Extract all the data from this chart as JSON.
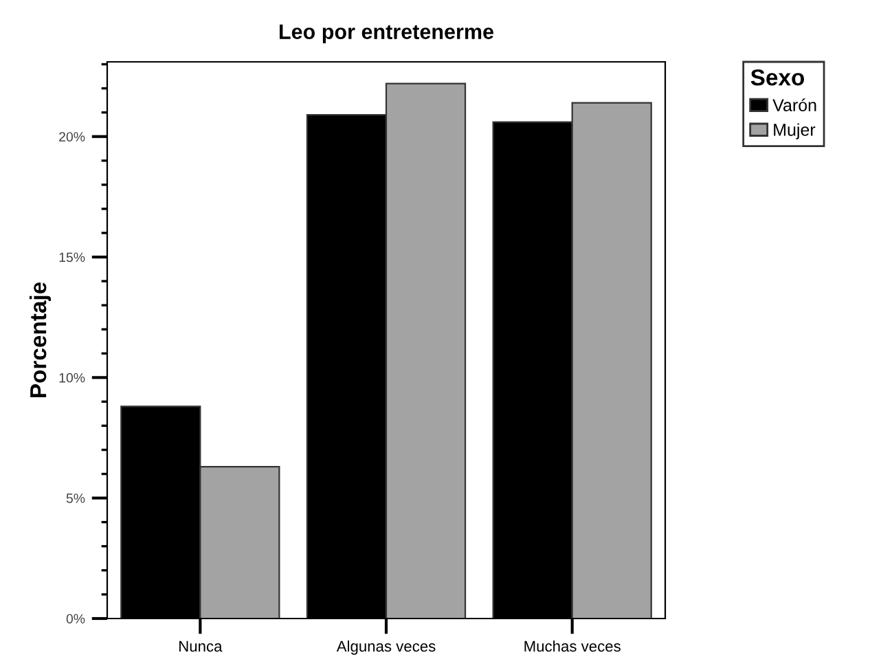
{
  "chart_data": {
    "type": "bar",
    "title": "Leo por entretenerme",
    "ylabel": "Porcentaje",
    "legend_title": "Sexo",
    "categories": [
      "Nunca",
      "Algunas veces",
      "Muchas veces"
    ],
    "series": [
      {
        "name": "Varón",
        "color": "#000000",
        "values": [
          8.8,
          20.9,
          20.6
        ]
      },
      {
        "name": "Mujer",
        "color": "#a3a3a3",
        "values": [
          6.3,
          22.2,
          21.4
        ]
      }
    ],
    "ylim": [
      0,
      23.1
    ],
    "yticks": [
      {
        "value": 0,
        "label": "0%"
      },
      {
        "value": 5,
        "label": "5%"
      },
      {
        "value": 10,
        "label": "10%"
      },
      {
        "value": 15,
        "label": "15%"
      },
      {
        "value": 20,
        "label": "20%"
      }
    ],
    "grid": false,
    "legend": "top right"
  }
}
